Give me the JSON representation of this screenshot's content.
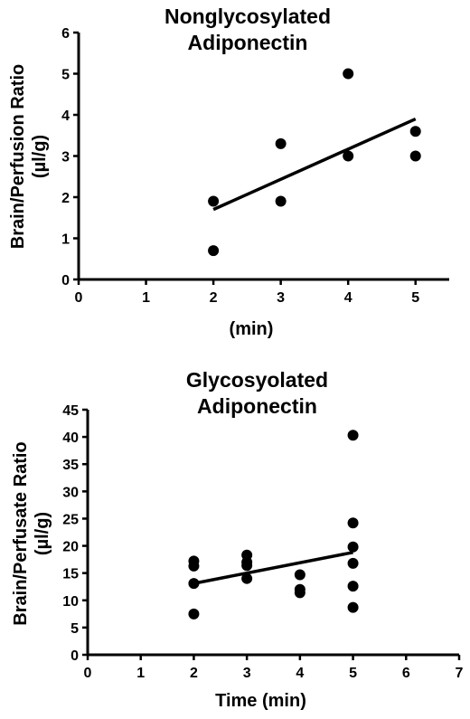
{
  "chart_data": [
    {
      "type": "scatter",
      "title_lines": [
        "Nonglycosylated",
        "Adiponectin"
      ],
      "xlabel": "(min)",
      "ylabel_lines": [
        "Brain/Perfusion Ratio",
        "(µl/g)"
      ],
      "xlim": [
        0,
        5.5
      ],
      "ylim": [
        0,
        6
      ],
      "x_ticks": [
        0,
        1,
        2,
        3,
        4,
        5
      ],
      "y_ticks": [
        0,
        1,
        2,
        3,
        4,
        5,
        6
      ],
      "grid": false,
      "series": [
        {
          "points": [
            {
              "x": 2,
              "y": 1.9
            },
            {
              "x": 2,
              "y": 0.7
            },
            {
              "x": 3,
              "y": 3.3
            },
            {
              "x": 3,
              "y": 1.9
            },
            {
              "x": 4,
              "y": 5.0
            },
            {
              "x": 4,
              "y": 3.0
            },
            {
              "x": 5,
              "y": 3.6
            },
            {
              "x": 5,
              "y": 3.0
            }
          ]
        }
      ],
      "fit_line": {
        "x": [
          2,
          5
        ],
        "y": [
          1.7,
          3.9
        ]
      }
    },
    {
      "type": "scatter",
      "title_lines": [
        "Glycosyolated",
        "Adiponectin"
      ],
      "xlabel": "Time (min)",
      "ylabel_lines": [
        "Brain/Perfusate Ratio",
        "(µl/g)"
      ],
      "xlim": [
        0,
        7
      ],
      "ylim": [
        0,
        45
      ],
      "x_ticks": [
        0,
        1,
        2,
        3,
        4,
        5,
        6,
        7
      ],
      "y_ticks": [
        0,
        5,
        10,
        15,
        20,
        25,
        30,
        35,
        40,
        45
      ],
      "grid": false,
      "series": [
        {
          "points": [
            {
              "x": 2,
              "y": 17.2
            },
            {
              "x": 2,
              "y": 16.3
            },
            {
              "x": 2,
              "y": 13.1
            },
            {
              "x": 2,
              "y": 7.5
            },
            {
              "x": 3,
              "y": 18.3
            },
            {
              "x": 3,
              "y": 17.0
            },
            {
              "x": 3,
              "y": 16.4
            },
            {
              "x": 3,
              "y": 14.0
            },
            {
              "x": 4,
              "y": 14.7
            },
            {
              "x": 4,
              "y": 12.0
            },
            {
              "x": 4,
              "y": 11.4
            },
            {
              "x": 5,
              "y": 40.3
            },
            {
              "x": 5,
              "y": 24.2
            },
            {
              "x": 5,
              "y": 19.8
            },
            {
              "x": 5,
              "y": 16.8
            },
            {
              "x": 5,
              "y": 12.6
            },
            {
              "x": 5,
              "y": 8.7
            }
          ]
        }
      ],
      "fit_line": {
        "x": [
          2,
          5
        ],
        "y": [
          13.1,
          18.8
        ]
      }
    }
  ]
}
